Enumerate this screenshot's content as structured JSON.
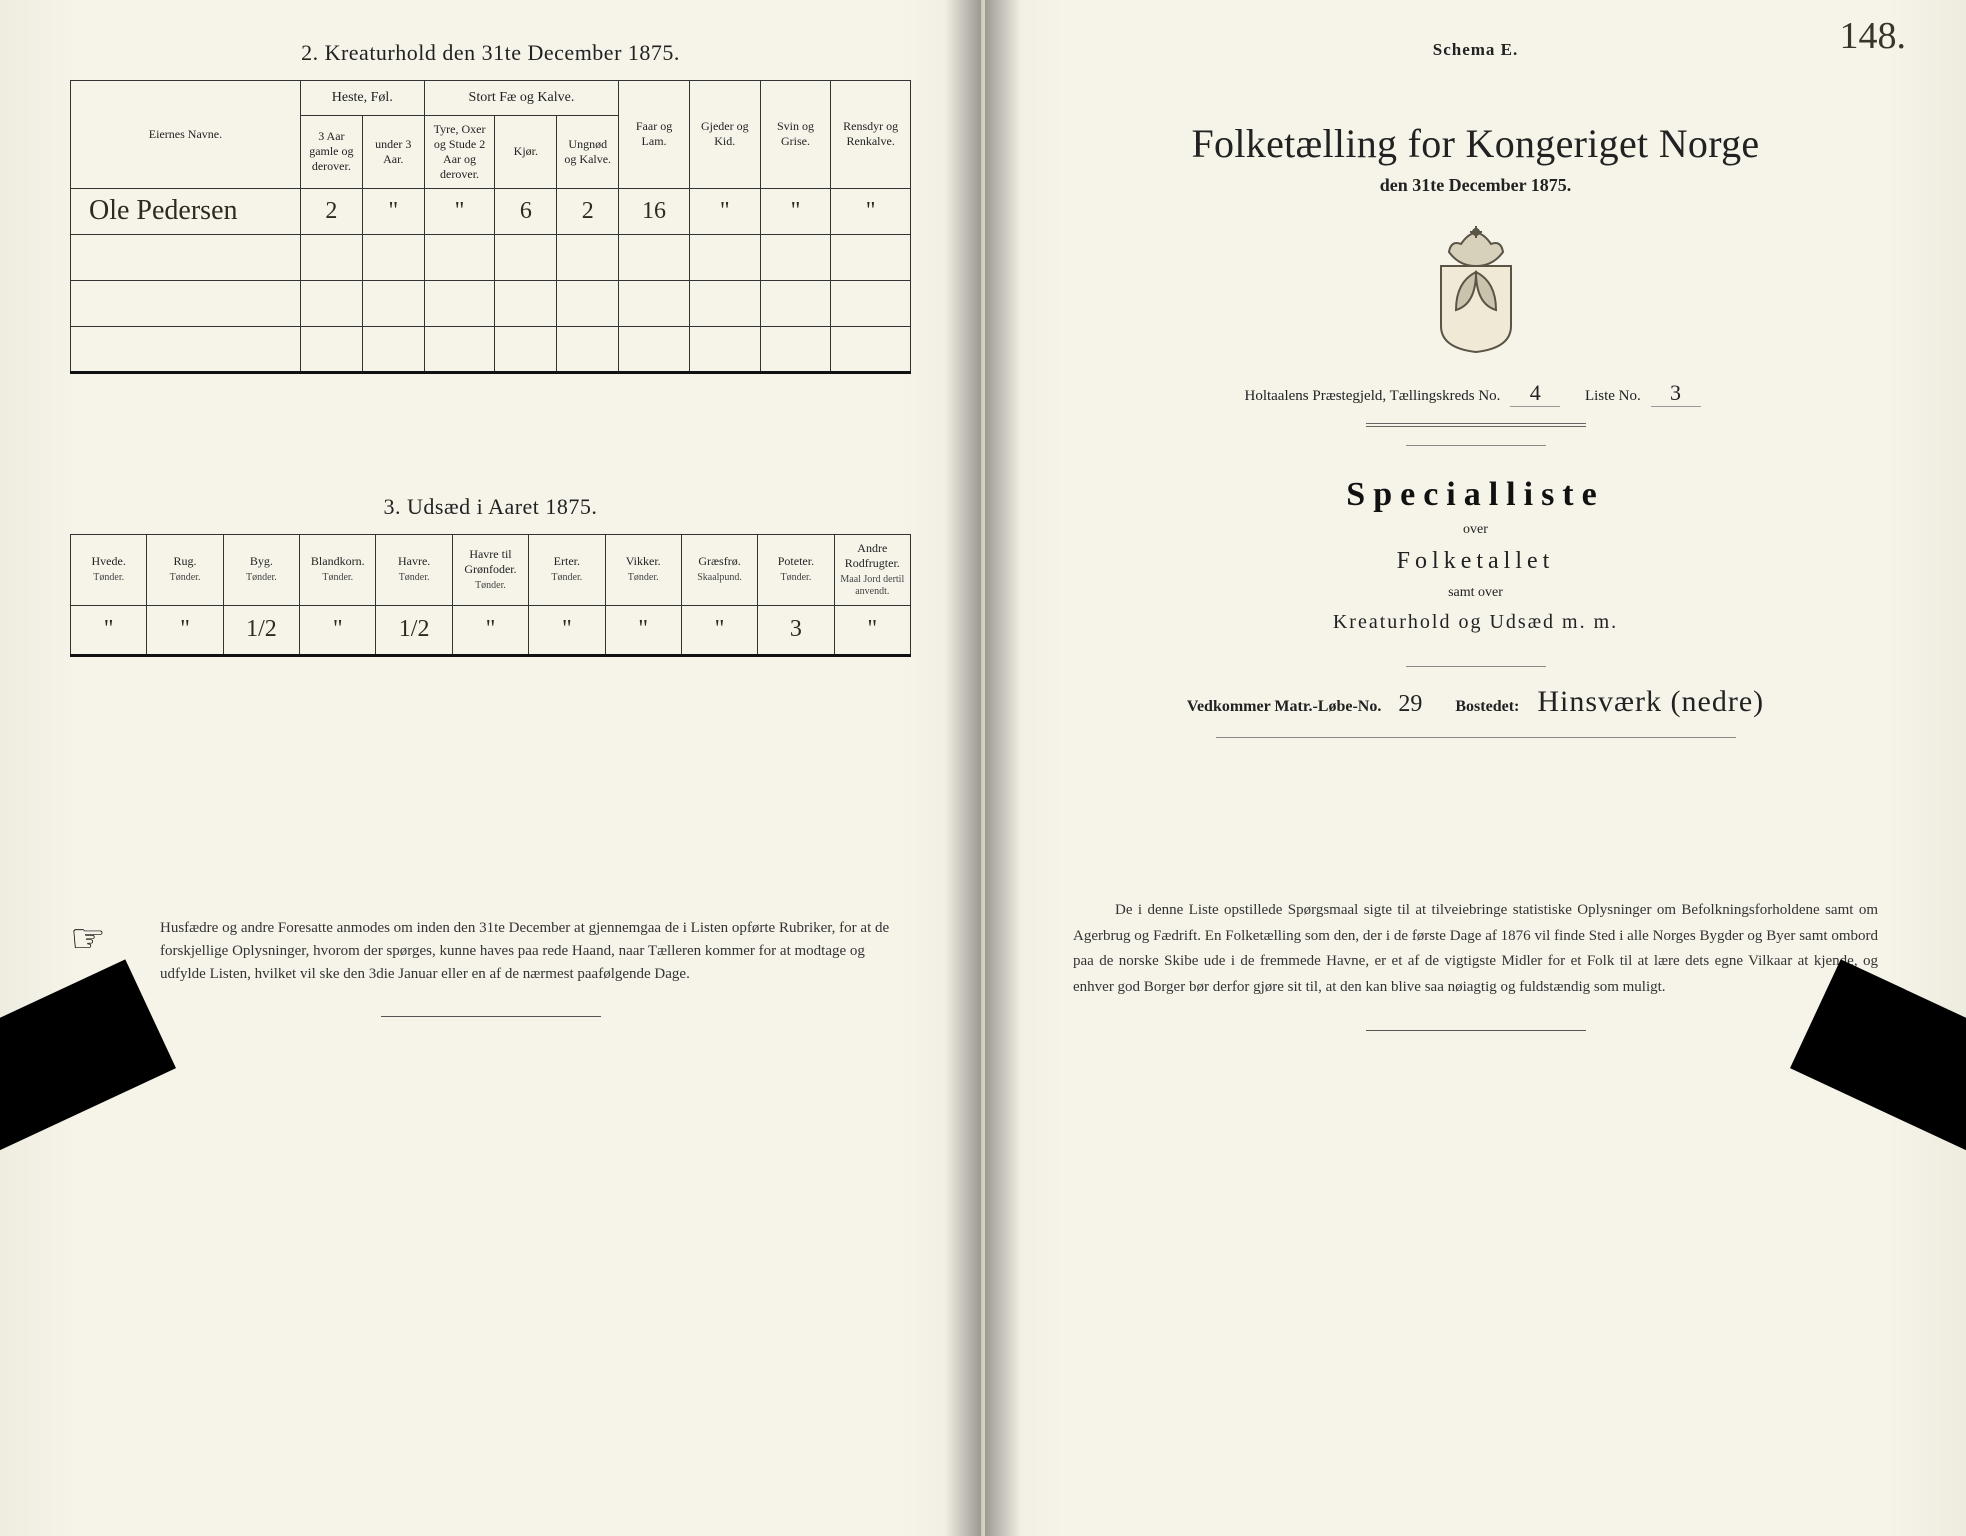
{
  "left": {
    "section2_title": "2.   Kreaturhold den 31te December 1875.",
    "page_number_hand": "148.",
    "livestock": {
      "col_owner": "Eiernes Navne.",
      "groups": {
        "heste": "Heste, Føl.",
        "storfe": "Stort Fæ og Kalve.",
        "faar": "Faar og Lam.",
        "gjeder": "Gjeder og Kid.",
        "svin": "Svin og Grise.",
        "rensdyr": "Rensdyr og Renkalve."
      },
      "sub": {
        "heste_a": "3 Aar gamle og derover.",
        "heste_b": "under 3 Aar.",
        "stor_a": "Tyre, Oxer og Stude 2 Aar og derover.",
        "stor_b": "Kjør.",
        "stor_c": "Ungnød og Kalve."
      },
      "rows": [
        {
          "owner": "Ole Pedersen",
          "v": [
            "2",
            "\"",
            "\"",
            "6",
            "2",
            "16",
            "\"",
            "\"",
            "\""
          ]
        },
        {
          "owner": "",
          "v": [
            "",
            "",
            "",
            "",
            "",
            "",
            "",
            "",
            ""
          ]
        },
        {
          "owner": "",
          "v": [
            "",
            "",
            "",
            "",
            "",
            "",
            "",
            "",
            ""
          ]
        },
        {
          "owner": "",
          "v": [
            "",
            "",
            "",
            "",
            "",
            "",
            "",
            "",
            ""
          ]
        }
      ]
    },
    "section3_title": "3.   Udsæd i Aaret 1875.",
    "seed": {
      "cols": [
        {
          "h": "Hvede.",
          "s": "Tønder."
        },
        {
          "h": "Rug.",
          "s": "Tønder."
        },
        {
          "h": "Byg.",
          "s": "Tønder."
        },
        {
          "h": "Blandkorn.",
          "s": "Tønder."
        },
        {
          "h": "Havre.",
          "s": "Tønder."
        },
        {
          "h": "Havre til Grønfoder.",
          "s": "Tønder."
        },
        {
          "h": "Erter.",
          "s": "Tønder."
        },
        {
          "h": "Vikker.",
          "s": "Tønder."
        },
        {
          "h": "Græsfrø.",
          "s": "Skaalpund."
        },
        {
          "h": "Poteter.",
          "s": "Tønder."
        },
        {
          "h": "Andre Rodfrugter.",
          "s": "Maal Jord dertil anvendt."
        }
      ],
      "values": [
        "\"",
        "\"",
        "1/2",
        "\"",
        "1/2",
        "\"",
        "\"",
        "\"",
        "\"",
        "3",
        "\""
      ]
    },
    "footnote": "Husfædre og andre Foresatte anmodes om inden den 31te December at gjennemgaa de i Listen opførte Rubriker, for at de forskjellige Oplysninger, hvorom der spørges, kunne haves paa rede Haand, naar Tælleren kommer for at modtage og udfylde Listen, hvilket vil ske den 3die Januar eller en af de nærmest paafølgende Dage."
  },
  "right": {
    "schema": "Schema E.",
    "title": "Folketælling for Kongeriget Norge",
    "date": "den 31te December 1875.",
    "reg_prefix": "Holtaalens Præstegjeld, Tællingskreds No.",
    "reg_kreds": "4",
    "reg_liste_label": "Liste No.",
    "reg_liste": "3",
    "special_title": "Specialliste",
    "over": "over",
    "folketallet": "Folketallet",
    "samt_over": "samt over",
    "kreatur_line": "Kreaturhold og Udsæd m. m.",
    "matr_label": "Vedkommer Matr.-Løbe-No.",
    "matr_no": "29",
    "bosted_label": "Bostedet:",
    "bosted_value": "Hinsværk (nedre)",
    "bottom_para": "De i denne Liste opstillede Spørgsmaal sigte til at tilveiebringe statistiske Oplysninger om Befolkningsforholdene samt om Agerbrug og Fædrift.  En Folketælling som den, der i de første Dage af 1876 vil finde Sted i alle Norges Bygder og Byer samt ombord paa de norske Skibe ude i de fremmede Havne, er et af de vigtigste Midler for et Folk til at lære dets egne Vilkaar at kjende, og enhver god Borger bør derfor gjøre sit til, at den kan blive saa nøiagtig og fuldstændig som muligt."
  },
  "colors": {
    "paper": "#f6f3e9",
    "ink": "#222",
    "border": "#333"
  }
}
